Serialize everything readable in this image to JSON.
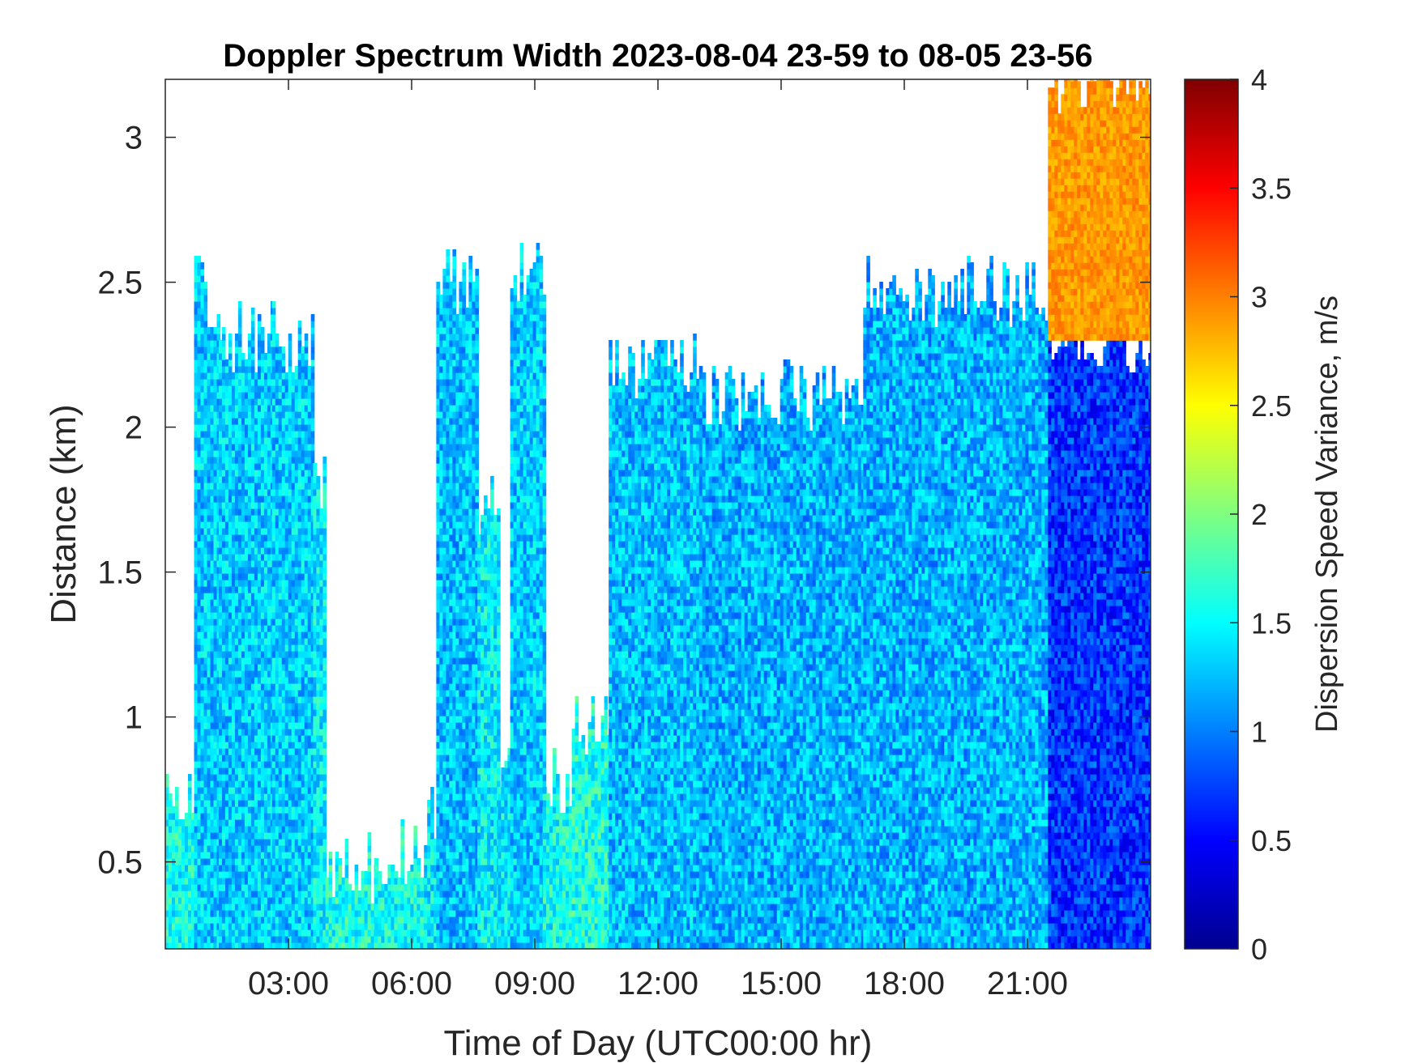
{
  "chart_data": {
    "type": "heatmap",
    "title": "Doppler Spectrum Width 2023-08-04 23-59 to 08-05 23-56",
    "xlabel": "Time of Day (UTC00:00 hr)",
    "ylabel": "Distance (km)",
    "colorbar_label": "Dispersion Speed Variance, m/s",
    "colormap": "jet",
    "xlim_hours": [
      0,
      24
    ],
    "ylim_km": [
      0.2,
      3.2
    ],
    "clim": [
      0,
      4
    ],
    "x_ticks": [
      {
        "value": 3,
        "label": "03:00"
      },
      {
        "value": 6,
        "label": "06:00"
      },
      {
        "value": 9,
        "label": "09:00"
      },
      {
        "value": 12,
        "label": "12:00"
      },
      {
        "value": 15,
        "label": "15:00"
      },
      {
        "value": 18,
        "label": "18:00"
      },
      {
        "value": 21,
        "label": "21:00"
      }
    ],
    "y_ticks": [
      {
        "value": 0.5,
        "label": "0.5"
      },
      {
        "value": 1,
        "label": "1"
      },
      {
        "value": 1.5,
        "label": "1.5"
      },
      {
        "value": 2,
        "label": "2"
      },
      {
        "value": 2.5,
        "label": "2.5"
      },
      {
        "value": 3,
        "label": "3"
      }
    ],
    "colorbar_ticks": [
      {
        "value": 0,
        "label": "0"
      },
      {
        "value": 0.5,
        "label": "0.5"
      },
      {
        "value": 1,
        "label": "1"
      },
      {
        "value": 1.5,
        "label": "1.5"
      },
      {
        "value": 2,
        "label": "2"
      },
      {
        "value": 2.5,
        "label": "2.5"
      },
      {
        "value": 3,
        "label": "3"
      },
      {
        "value": 3.5,
        "label": "3.5"
      },
      {
        "value": 4,
        "label": "4"
      }
    ],
    "echo_regions": [
      {
        "t_start": 0.0,
        "t_end": 0.7,
        "top_km": 0.75,
        "mean": 1.55
      },
      {
        "t_start": 0.7,
        "t_end": 1.3,
        "top_km": 2.45,
        "mean": 1.3
      },
      {
        "t_start": 1.3,
        "t_end": 2.6,
        "top_km": 2.3,
        "mean": 1.3
      },
      {
        "t_start": 2.6,
        "t_end": 3.6,
        "top_km": 2.3,
        "mean": 1.3
      },
      {
        "t_start": 3.6,
        "t_end": 3.9,
        "top_km": 1.78,
        "mean": 1.45
      },
      {
        "t_start": 3.9,
        "t_end": 5.1,
        "top_km": 0.47,
        "mean": 1.6
      },
      {
        "t_start": 5.1,
        "t_end": 6.3,
        "top_km": 0.52,
        "mean": 1.55
      },
      {
        "t_start": 6.3,
        "t_end": 6.6,
        "top_km": 0.65,
        "mean": 1.45
      },
      {
        "t_start": 6.6,
        "t_end": 7.6,
        "top_km": 2.5,
        "mean": 1.25
      },
      {
        "t_start": 7.6,
        "t_end": 8.1,
        "top_km": 1.7,
        "mean": 1.45
      },
      {
        "t_start": 8.1,
        "t_end": 8.4,
        "top_km": 0.85,
        "mean": 1.45
      },
      {
        "t_start": 8.4,
        "t_end": 9.2,
        "top_km": 2.5,
        "mean": 1.3
      },
      {
        "t_start": 9.2,
        "t_end": 9.9,
        "top_km": 0.78,
        "mean": 1.55
      },
      {
        "t_start": 9.9,
        "t_end": 10.8,
        "top_km": 0.95,
        "mean": 1.6
      },
      {
        "t_start": 10.8,
        "t_end": 13.0,
        "top_km": 2.2,
        "mean": 1.25
      },
      {
        "t_start": 13.0,
        "t_end": 17.0,
        "top_km": 2.1,
        "mean": 1.2
      },
      {
        "t_start": 17.0,
        "t_end": 21.5,
        "top_km": 2.45,
        "mean": 1.2
      },
      {
        "t_start": 21.5,
        "t_end": 24.0,
        "top_km": 2.3,
        "mean": 0.7
      }
    ],
    "upper_region": {
      "t_start": 21.5,
      "t_end": 24.0,
      "bottom_km": 2.3,
      "top_km": 3.2,
      "mean": 2.9
    }
  }
}
